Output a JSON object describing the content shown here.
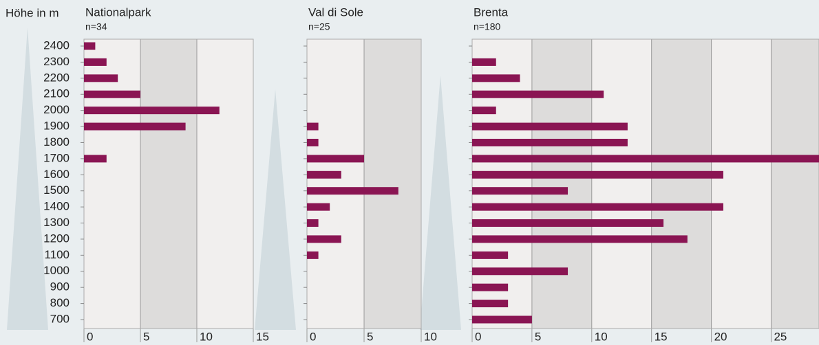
{
  "chart_data": {
    "type": "bar",
    "y_label": "Höhe in m",
    "color": "#8a1553",
    "bands": [
      "#f1efee",
      "#dddcdb"
    ],
    "categories": [
      "2400",
      "2300",
      "2200",
      "2100",
      "2000",
      "1900",
      "1800",
      "1700",
      "1600",
      "1500",
      "1400",
      "1300",
      "1200",
      "1100",
      "1000",
      "900",
      "800",
      "700"
    ],
    "panels": [
      {
        "title": "Nationalpark",
        "subtitle": "n=34",
        "values": [
          1,
          2,
          3,
          5,
          12,
          9,
          0,
          2,
          0,
          0,
          0,
          0,
          0,
          0,
          0,
          0,
          0,
          0
        ],
        "xlim": [
          0,
          15
        ],
        "xticks": [
          0,
          5,
          10,
          15
        ]
      },
      {
        "title": "Val di Sole",
        "subtitle": "n=25",
        "values": [
          0,
          0,
          0,
          0,
          0,
          1,
          1,
          5,
          3,
          8,
          2,
          1,
          3,
          1,
          0,
          0,
          0,
          0
        ],
        "xlim": [
          0,
          10
        ],
        "xticks": [
          0,
          5,
          10
        ]
      },
      {
        "title": "Brenta",
        "subtitle": "n=180",
        "values": [
          0,
          2,
          4,
          11,
          2,
          13,
          13,
          29,
          21,
          8,
          21,
          16,
          18,
          3,
          8,
          3,
          3,
          5
        ],
        "xlim": [
          0,
          29
        ],
        "xticks": [
          0,
          5,
          10,
          15,
          20,
          25
        ]
      }
    ]
  }
}
